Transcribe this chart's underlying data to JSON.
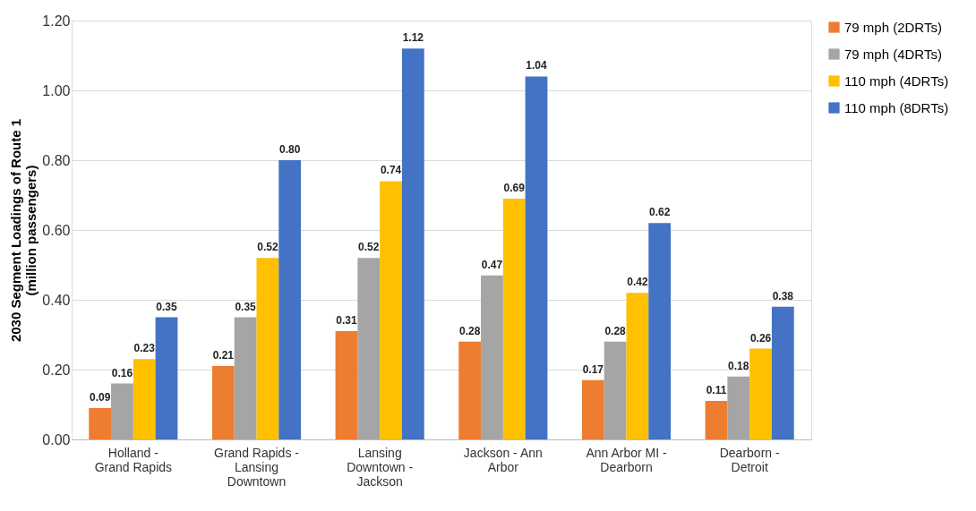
{
  "chart_data": {
    "type": "bar",
    "ylabel": "2030 Segment Loadings of Route 1 (million passengers)",
    "categories": [
      "Holland - Grand Rapids",
      "Grand Rapids - Lansing Downtown",
      "Lansing Downtown - Jackson",
      "Jackson - Ann Arbor",
      "Ann Arbor MI - Dearborn",
      "Dearborn - Detroit"
    ],
    "series": [
      {
        "name": "79 mph (2DRTs)",
        "color": "#ed7d31",
        "values": [
          0.09,
          0.21,
          0.31,
          0.28,
          0.17,
          0.11
        ],
        "value_labels": [
          "0.09",
          "0.21",
          "0.31",
          "0.28",
          "0.17",
          "0.11"
        ]
      },
      {
        "name": "79 mph (4DRTs)",
        "color": "#a5a5a5",
        "values": [
          0.16,
          0.35,
          0.52,
          0.47,
          0.28,
          0.18
        ],
        "value_labels": [
          "0.16",
          "0.35",
          "0.52",
          "0.47",
          "0.28",
          "0.18"
        ]
      },
      {
        "name": "110 mph (4DRTs)",
        "color": "#ffc000",
        "values": [
          0.23,
          0.52,
          0.74,
          0.69,
          0.42,
          0.26
        ],
        "value_labels": [
          "0.23",
          "0.52",
          "0.74",
          "0.69",
          "0.42",
          "0.26"
        ]
      },
      {
        "name": "110 mph (8DRTs)",
        "color": "#4472c4",
        "values": [
          0.35,
          0.8,
          1.12,
          1.04,
          0.62,
          0.38
        ],
        "value_labels": [
          "0.35",
          "0.80",
          "1.12",
          "1.04",
          "0.62",
          "0.38"
        ]
      }
    ],
    "ylim": [
      0,
      1.2
    ],
    "yticks": [
      {
        "value": 0,
        "label": "0.00"
      },
      {
        "value": 0.2,
        "label": "0.20"
      },
      {
        "value": 0.4,
        "label": "0.40"
      },
      {
        "value": 0.6,
        "label": "0.60"
      },
      {
        "value": 0.8,
        "label": "0.80"
      },
      {
        "value": 1.0,
        "label": "1.00"
      },
      {
        "value": 1.2,
        "label": "1.20"
      }
    ],
    "grid": "y",
    "legend": "right"
  }
}
